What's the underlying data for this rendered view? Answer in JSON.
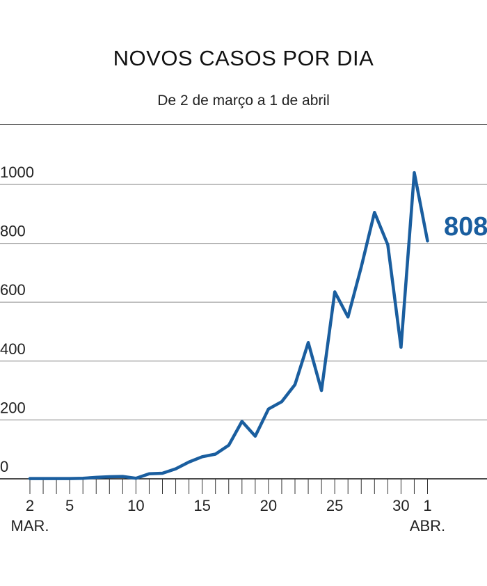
{
  "chart_data": {
    "type": "line",
    "title": "NOVOS CASOS POR DIA",
    "subtitle": "De 2 de março a 1 de abril",
    "xlabel": "",
    "ylabel": "",
    "ylim": [
      0,
      1000
    ],
    "yticks": [
      0,
      200,
      400,
      600,
      800,
      1000
    ],
    "ytick_labels": [
      "0",
      "200",
      "400",
      "600",
      "800",
      "1000"
    ],
    "grid": true,
    "x": [
      2,
      3,
      4,
      5,
      6,
      7,
      8,
      9,
      10,
      11,
      12,
      13,
      14,
      15,
      16,
      17,
      18,
      19,
      20,
      21,
      22,
      23,
      24,
      25,
      26,
      27,
      28,
      29,
      30,
      31,
      32
    ],
    "series": [
      {
        "name": "Novos casos",
        "color": "#1a5e9f",
        "values": [
          1,
          1,
          1,
          1,
          2,
          5,
          7,
          8,
          2,
          17,
          19,
          34,
          57,
          75,
          84,
          114,
          195,
          145,
          237,
          262,
          320,
          463,
          300,
          635,
          550,
          720,
          905,
          795,
          447,
          1040,
          808
        ]
      }
    ],
    "xtick_labels": [
      {
        "x": 2,
        "label": "2",
        "sub": "MAR."
      },
      {
        "x": 5,
        "label": "5",
        "sub": ""
      },
      {
        "x": 10,
        "label": "10",
        "sub": ""
      },
      {
        "x": 15,
        "label": "15",
        "sub": ""
      },
      {
        "x": 20,
        "label": "20",
        "sub": ""
      },
      {
        "x": 25,
        "label": "25",
        "sub": ""
      },
      {
        "x": 30,
        "label": "30",
        "sub": ""
      },
      {
        "x": 32,
        "label": "1",
        "sub": "ABR."
      }
    ],
    "end_label": "808"
  }
}
